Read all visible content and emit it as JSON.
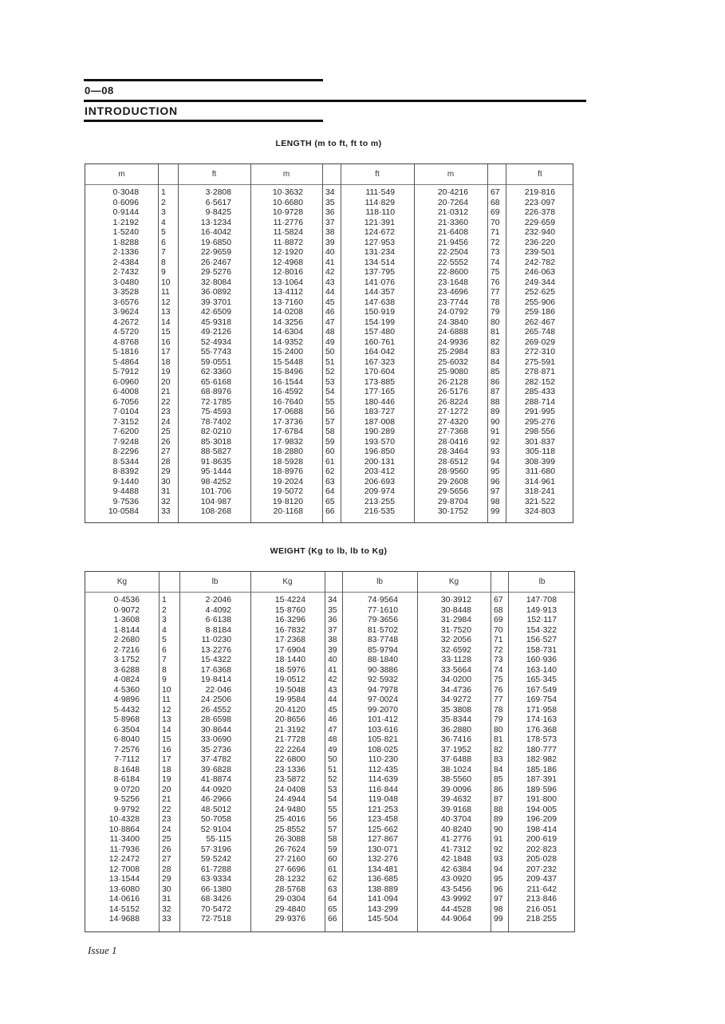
{
  "header": {
    "page_number": "0—08",
    "section": "INTRODUCTION"
  },
  "footer": {
    "issue": "Issue 1"
  },
  "length": {
    "title": "LENGTH (m to ft, ft to m)",
    "headers": [
      "m",
      "",
      "ft",
      "m",
      "",
      "ft",
      "m",
      "",
      "ft"
    ],
    "rows": [
      [
        "0·3048",
        "1",
        "3·2808",
        "10·3632",
        "34",
        "111·549",
        "20·4216",
        "67",
        "219·816"
      ],
      [
        "0·6096",
        "2",
        "6·5617",
        "10·6680",
        "35",
        "114·829",
        "20·7264",
        "68",
        "223·097"
      ],
      [
        "0·9144",
        "3",
        "9·8425",
        "10·9728",
        "36",
        "118·110",
        "21·0312",
        "69",
        "226·378"
      ],
      [
        "1·2192",
        "4",
        "13·1234",
        "11·2776",
        "37",
        "121·391",
        "21·3360",
        "70",
        "229·659"
      ],
      [
        "1·5240",
        "5",
        "16·4042",
        "11·5824",
        "38",
        "124·672",
        "21·6408",
        "71",
        "232·940"
      ],
      [
        "1·8288",
        "6",
        "19·6850",
        "11·8872",
        "39",
        "127·953",
        "21·9456",
        "72",
        "236·220"
      ],
      [
        "2·1336",
        "7",
        "22·9659",
        "12·1920",
        "40",
        "131·234",
        "22·2504",
        "73",
        "239·501"
      ],
      [
        "2·4384",
        "8",
        "26·2467",
        "12·4968",
        "41",
        "134·514",
        "22·5552",
        "74",
        "242·782"
      ],
      [
        "2·7432",
        "9",
        "29·5276",
        "12·8016",
        "42",
        "137·795",
        "22·8600",
        "75",
        "246·063"
      ],
      [
        "3·0480",
        "10",
        "32·8084",
        "13·1064",
        "43",
        "141·076",
        "23·1648",
        "76",
        "249·344"
      ],
      [
        "3·3528",
        "11",
        "36·0892",
        "13·4112",
        "44",
        "144·357",
        "23·4696",
        "77",
        "252·625"
      ],
      [
        "3·6576",
        "12",
        "39·3701",
        "13·7160",
        "45",
        "147·638",
        "23·7744",
        "78",
        "255·906"
      ],
      [
        "3·9624",
        "13",
        "42·6509",
        "14·0208",
        "46",
        "150·919",
        "24·0792",
        "79",
        "259·186"
      ],
      [
        "4·2672",
        "14",
        "45·9318",
        "14·3256",
        "47",
        "154·199",
        "24·3840",
        "80",
        "262·467"
      ],
      [
        "4·5720",
        "15",
        "49·2126",
        "14·6304",
        "48",
        "157·480",
        "24·6888",
        "81",
        "265·748"
      ],
      [
        "4·8768",
        "16",
        "52·4934",
        "14·9352",
        "49",
        "160·761",
        "24·9936",
        "82",
        "269·029"
      ],
      [
        "5·1816",
        "17",
        "55·7743",
        "15·2400",
        "50",
        "164·042",
        "25·2984",
        "83",
        "272·310"
      ],
      [
        "5·4864",
        "18",
        "59·0551",
        "15·5448",
        "51",
        "167·323",
        "25·6032",
        "84",
        "275·591"
      ],
      [
        "5·7912",
        "19",
        "62·3360",
        "15·8496",
        "52",
        "170·604",
        "25·9080",
        "85",
        "278·871"
      ],
      [
        "6·0960",
        "20",
        "65·6168",
        "16·1544",
        "53",
        "173·885",
        "26·2128",
        "86",
        "282·152"
      ],
      [
        "6·4008",
        "21",
        "68·8976",
        "16·4592",
        "54",
        "177·165",
        "26·5176",
        "87",
        "285·433"
      ],
      [
        "6·7056",
        "22",
        "72·1785",
        "16·7640",
        "55",
        "180·446",
        "26·8224",
        "88",
        "288·714"
      ],
      [
        "7·0104",
        "23",
        "75·4593",
        "17·0688",
        "56",
        "183·727",
        "27·1272",
        "89",
        "291·995"
      ],
      [
        "7·3152",
        "24",
        "78·7402",
        "17·3736",
        "57",
        "187·008",
        "27·4320",
        "90",
        "295·276"
      ],
      [
        "7·6200",
        "25",
        "82·0210",
        "17·6784",
        "58",
        "190·289",
        "27·7368",
        "91",
        "298·556"
      ],
      [
        "7·9248",
        "26",
        "85·3018",
        "17·9832",
        "59",
        "193·570",
        "28·0416",
        "92",
        "301·837"
      ],
      [
        "8·2296",
        "27",
        "88·5827",
        "18·2880",
        "60",
        "196·850",
        "28·3464",
        "93",
        "305·118"
      ],
      [
        "8·5344",
        "28",
        "91·8635",
        "18·5928",
        "61",
        "200·131",
        "28·6512",
        "94",
        "308·399"
      ],
      [
        "8·8392",
        "29",
        "95·1444",
        "18·8976",
        "62",
        "203·412",
        "28·9560",
        "95",
        "311·680"
      ],
      [
        "9·1440",
        "30",
        "98·4252",
        "19·2024",
        "63",
        "206·693",
        "29·2608",
        "96",
        "314·961"
      ],
      [
        "9·4488",
        "31",
        "101·706",
        "19·5072",
        "64",
        "209·974",
        "29·5656",
        "97",
        "318·241"
      ],
      [
        "9·7536",
        "32",
        "104·987",
        "19·8120",
        "65",
        "213·255",
        "29·8704",
        "98",
        "321·522"
      ],
      [
        "10·0584",
        "33",
        "108·268",
        "20·1168",
        "66",
        "216·535",
        "30·1752",
        "99",
        "324·803"
      ]
    ]
  },
  "weight": {
    "title": "WEIGHT (Kg to lb, lb to Kg)",
    "headers": [
      "Kg",
      "",
      "lb",
      "Kg",
      "",
      "lb",
      "Kg",
      "",
      "lb"
    ],
    "rows": [
      [
        "0·4536",
        "1",
        "2·2046",
        "15·4224",
        "34",
        "74·9564",
        "30·3912",
        "67",
        "147·708"
      ],
      [
        "0·9072",
        "2",
        "4·4092",
        "15·8760",
        "35",
        "77·1610",
        "30·8448",
        "68",
        "149·913"
      ],
      [
        "1·3608",
        "3",
        "6·6138",
        "16·3296",
        "36",
        "79·3656",
        "31·2984",
        "69",
        "152·117"
      ],
      [
        "1·8144",
        "4",
        "8·8184",
        "16·7832",
        "37",
        "81·5702",
        "31·7520",
        "70",
        "154·322"
      ],
      [
        "2·2680",
        "5",
        "11·0230",
        "17·2368",
        "38",
        "83·7748",
        "32·2056",
        "71",
        "156·527"
      ],
      [
        "2·7216",
        "6",
        "13·2276",
        "17·6904",
        "39",
        "85·9794",
        "32·6592",
        "72",
        "158·731"
      ],
      [
        "3·1752",
        "7",
        "15·4322",
        "18·1440",
        "40",
        "88·1840",
        "33·1128",
        "73",
        "160·936"
      ],
      [
        "3·6288",
        "8",
        "17·6368",
        "18·5976",
        "41",
        "90·3886",
        "33·5664",
        "74",
        "163·140"
      ],
      [
        "4·0824",
        "9",
        "19·8414",
        "19·0512",
        "42",
        "92·5932",
        "34·0200",
        "75",
        "165·345"
      ],
      [
        "4·5360",
        "10",
        "22·046",
        "19·5048",
        "43",
        "94·7978",
        "34·4736",
        "76",
        "167·549"
      ],
      [
        "4·9896",
        "11",
        "24·2506",
        "19·9584",
        "44",
        "97·0024",
        "34·9272",
        "77",
        "169·754"
      ],
      [
        "5·4432",
        "12",
        "26·4552",
        "20·4120",
        "45",
        "99·2070",
        "35·3808",
        "78",
        "171·958"
      ],
      [
        "5·8968",
        "13",
        "28·6598",
        "20·8656",
        "46",
        "101·412",
        "35·8344",
        "79",
        "174·163"
      ],
      [
        "6·3504",
        "14",
        "30·8644",
        "21·3192",
        "47",
        "103·616",
        "36·2880",
        "80",
        "176·368"
      ],
      [
        "6·8040",
        "15",
        "33·0690",
        "21·7728",
        "48",
        "105·821",
        "36·7416",
        "81",
        "178·573"
      ],
      [
        "7·2576",
        "16",
        "35·2736",
        "22·2264",
        "49",
        "108·025",
        "37·1952",
        "82",
        "180·777"
      ],
      [
        "7·7112",
        "17",
        "37·4782",
        "22·6800",
        "50",
        "110·230",
        "37·6488",
        "83",
        "182·982"
      ],
      [
        "8·1648",
        "18",
        "39·6828",
        "23·1336",
        "51",
        "112·435",
        "38·1024",
        "84",
        "185·186"
      ],
      [
        "8·6184",
        "19",
        "41·8874",
        "23·5872",
        "52",
        "114·639",
        "38·5560",
        "85",
        "187·391"
      ],
      [
        "9·0720",
        "20",
        "44·0920",
        "24·0408",
        "53",
        "116·844",
        "39·0096",
        "86",
        "189·596"
      ],
      [
        "9·5256",
        "21",
        "46·2966",
        "24·4944",
        "54",
        "119·048",
        "39·4632",
        "87",
        "191·800"
      ],
      [
        "9·9792",
        "22",
        "48·5012",
        "24·9480",
        "55",
        "121·253",
        "39·9168",
        "88",
        "194·005"
      ],
      [
        "10·4328",
        "23",
        "50·7058",
        "25·4016",
        "56",
        "123·458",
        "40·3704",
        "89",
        "196·209"
      ],
      [
        "10·8864",
        "24",
        "52·9104",
        "25·8552",
        "57",
        "125·662",
        "40·8240",
        "90",
        "198·414"
      ],
      [
        "11·3400",
        "25",
        "55·115",
        "26·3088",
        "58",
        "127·867",
        "41·2776",
        "91",
        "200·619"
      ],
      [
        "11·7936",
        "26",
        "57·3196",
        "26·7624",
        "59",
        "130·071",
        "41·7312",
        "92",
        "202·823"
      ],
      [
        "12·2472",
        "27",
        "59·5242",
        "27·2160",
        "60",
        "132·276",
        "42·1848",
        "93",
        "205·028"
      ],
      [
        "12·7008",
        "28",
        "61·7288",
        "27·6696",
        "61",
        "134·481",
        "42·6384",
        "94",
        "207·232"
      ],
      [
        "13·1544",
        "29",
        "63·9334",
        "28·1232",
        "62",
        "136·685",
        "43·0920",
        "95",
        "209·437"
      ],
      [
        "13·6080",
        "30",
        "66·1380",
        "28·5768",
        "63",
        "138·889",
        "43·5456",
        "96",
        "211·642"
      ],
      [
        "14·0616",
        "31",
        "68·3426",
        "29·0304",
        "64",
        "141·094",
        "43·9992",
        "97",
        "213·846"
      ],
      [
        "14·5152",
        "32",
        "70·5472",
        "29·4840",
        "65",
        "143·299",
        "44·4528",
        "98",
        "216·051"
      ],
      [
        "14·9688",
        "33",
        "72·7518",
        "29·9376",
        "66",
        "145·504",
        "44·9064",
        "99",
        "218·255"
      ]
    ]
  }
}
